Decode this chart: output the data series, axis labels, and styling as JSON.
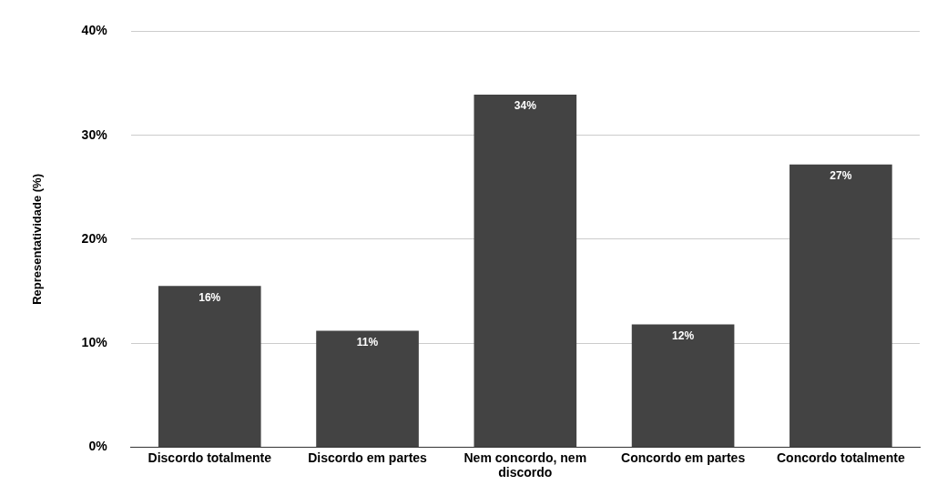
{
  "chart_data": {
    "type": "bar",
    "ylabel": "Representatividade (%)",
    "categories": [
      "Discordo totalmente",
      "Discordo em partes",
      "Nem concordo, nem discordo",
      "Concordo em partes",
      "Concordo totalmente"
    ],
    "values": [
      15.5,
      11.2,
      33.9,
      11.8,
      27.2
    ],
    "value_labels": [
      "16%",
      "11%",
      "34%",
      "12%",
      "27%"
    ],
    "color": "#434343",
    "ylim": [
      0,
      40
    ],
    "yticks": [
      {
        "value": 0,
        "label": "0%"
      },
      {
        "value": 10,
        "label": "10%"
      },
      {
        "value": 20,
        "label": "20%"
      },
      {
        "value": 30,
        "label": "30%"
      },
      {
        "value": 40,
        "label": "40%"
      }
    ],
    "grid": "y",
    "legend": false
  }
}
